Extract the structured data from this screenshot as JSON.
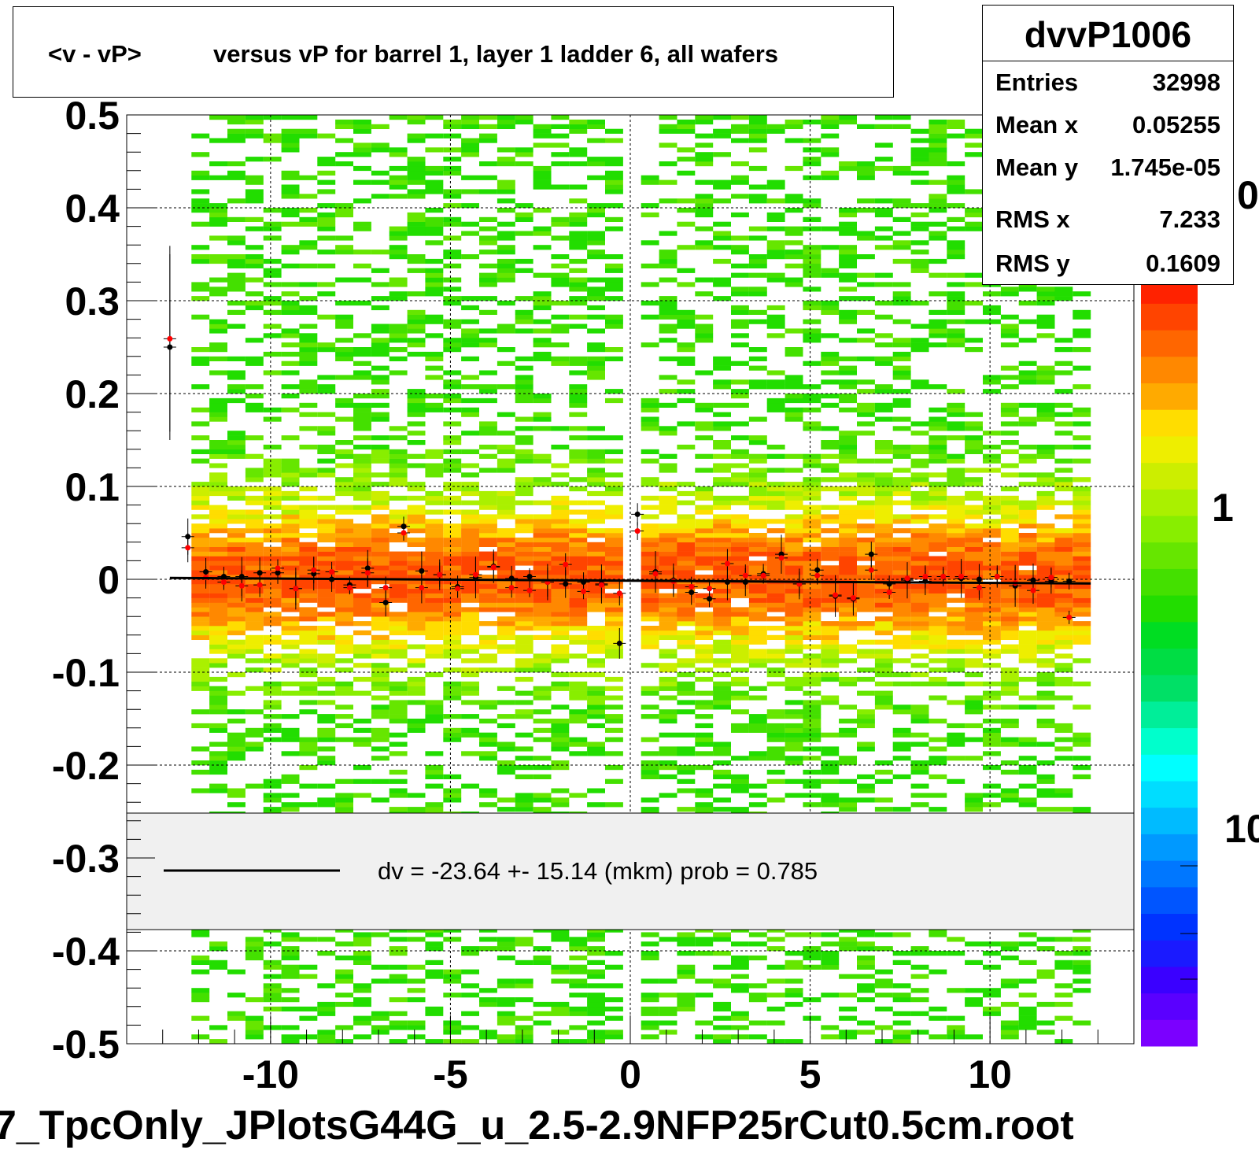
{
  "title": {
    "part1": "<v - vP>",
    "part2": "versus   vP for barrel 1, layer 1 ladder 6, all wafers"
  },
  "stats": {
    "name": "dvvP1006",
    "rows": [
      {
        "key": "Entries",
        "value": "32998"
      },
      {
        "key": "Mean x",
        "value": "0.05255"
      },
      {
        "key": "Mean y",
        "value": "1.745e-05"
      },
      {
        "key": "RMS x",
        "value": "7.233"
      },
      {
        "key": "RMS y",
        "value": "0.1609"
      }
    ]
  },
  "legend": {
    "text": "dv =  -23.64 +- 15.14 (mkm) prob = 0.785"
  },
  "filename": "7_TpcOnly_JPlotsG44G_u_2.5-2.9NFP25rCut0.5cm.root",
  "colorbar": {
    "labels": [
      "0",
      "1",
      "10"
    ],
    "colors": [
      "#7b00ff",
      "#5a00ff",
      "#3a00ff",
      "#1a1aff",
      "#0033ff",
      "#0055ff",
      "#0077ff",
      "#0099ff",
      "#00bbff",
      "#00ddff",
      "#00ffff",
      "#00ffcc",
      "#00ee99",
      "#00e066",
      "#00dd44",
      "#00dd22",
      "#22dd00",
      "#44e000",
      "#66e600",
      "#88ee00",
      "#aaf000",
      "#ccee00",
      "#eeee00",
      "#ffdd00",
      "#ffaa00",
      "#ff8800",
      "#ff6600",
      "#ff4400",
      "#ff2200",
      "#ee0000"
    ]
  },
  "chart_data": {
    "type": "heatmap",
    "title": "<v - vP>       versus   vP for barrel 1, layer 1 ladder 6, all wafers",
    "xlim": [
      -14,
      14
    ],
    "ylim": [
      -0.5,
      0.5
    ],
    "x_ticks": [
      "-10",
      "-5",
      "0",
      "5",
      "10"
    ],
    "y_ticks": [
      "0.5",
      "0.4",
      "0.3",
      "0.2",
      "0.1",
      "0",
      "-0.1",
      "-0.2",
      "-0.3",
      "-0.4",
      "-0.5"
    ],
    "grid": true,
    "fit_line": {
      "x": [
        -12.8,
        12.8
      ],
      "y": [
        0.0015,
        -0.0045
      ]
    },
    "profile_black": {
      "x": [
        -12.8,
        -12.3,
        -11.8,
        -11.3,
        -10.8,
        -10.3,
        -9.8,
        -9.3,
        -8.8,
        -8.3,
        -7.8,
        -7.3,
        -6.8,
        -6.3,
        -5.8,
        -5.3,
        -4.8,
        -4.3,
        -3.8,
        -3.3,
        -2.8,
        -2.3,
        -1.8,
        -1.3,
        -0.8,
        -0.3,
        0.2,
        0.7,
        1.2,
        1.7,
        2.2,
        2.7,
        3.2,
        3.7,
        4.2,
        4.7,
        5.2,
        5.7,
        6.2,
        6.7,
        7.2,
        7.7,
        8.2,
        8.7,
        9.2,
        9.7,
        10.2,
        10.7,
        11.2,
        11.7,
        12.2
      ],
      "y": [
        0.25,
        0.046,
        0.008,
        0.003,
        0.003,
        0.007,
        0.007,
        -0.01,
        0.006,
        0,
        -0.006,
        0.012,
        -0.025,
        0.057,
        0.009,
        0.005,
        -0.008,
        0.002,
        0.014,
        0.001,
        0.003,
        -0.003,
        -0.005,
        -0.003,
        -0.005,
        -0.069,
        0.07,
        0.008,
        -0.001,
        -0.014,
        -0.021,
        -0.003,
        -0.003,
        0.006,
        0.027,
        -0.005,
        0.01,
        -0.018,
        -0.021,
        0.027,
        -0.005,
        -0.001,
        -0.002,
        0.003,
        0.001,
        0,
        0.003,
        -0.007,
        -0.001,
        -0.002,
        -0.002
      ]
    },
    "profile_red": {
      "x": [
        -12.8,
        -12.3,
        -11.8,
        -11.3,
        -10.8,
        -10.3,
        -9.8,
        -9.3,
        -8.8,
        -8.3,
        -7.8,
        -7.3,
        -6.8,
        -6.3,
        -5.8,
        -5.3,
        -4.8,
        -4.3,
        -3.8,
        -3.3,
        -2.8,
        -2.3,
        -1.8,
        -1.3,
        -0.8,
        -0.3,
        0.2,
        0.7,
        1.2,
        1.7,
        2.2,
        2.7,
        3.2,
        3.7,
        4.2,
        4.7,
        5.2,
        5.7,
        6.2,
        6.7,
        7.2,
        7.7,
        8.2,
        8.7,
        9.2,
        9.7,
        10.2,
        10.7,
        11.2,
        11.7,
        12.2
      ],
      "y": [
        0.259,
        0.034,
        0.002,
        -0.003,
        -0.007,
        -0.006,
        0.012,
        -0.01,
        0.01,
        0.008,
        -0.009,
        0.007,
        -0.009,
        0.05,
        -0.009,
        0.005,
        -0.01,
        0.005,
        0.013,
        -0.009,
        -0.012,
        -0.003,
        0.016,
        -0.013,
        -0.006,
        -0.015,
        0.052,
        0.006,
        -0.002,
        -0.008,
        -0.01,
        0.017,
        0.004,
        0.004,
        0.023,
        -0.005,
        0.004,
        -0.017,
        -0.02,
        0.01,
        -0.014,
        0.001,
        0.003,
        0.003,
        0.003,
        -0.009,
        0.003,
        -0.004,
        -0.012,
        0.002,
        -0.041
      ]
    }
  }
}
